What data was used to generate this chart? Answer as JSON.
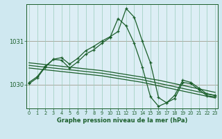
{
  "title": "Graphe pression niveau de la mer (hPa)",
  "background_color": "#cfe8f0",
  "plot_bg_color": "#ddeef5",
  "grid_color": "#99ccbb",
  "line_color": "#1a5e2a",
  "x_ticks": [
    0,
    1,
    2,
    3,
    4,
    5,
    6,
    7,
    8,
    9,
    10,
    11,
    12,
    13,
    14,
    15,
    16,
    17,
    18,
    19,
    20,
    21,
    22,
    23
  ],
  "y_ticks": [
    1030,
    1031
  ],
  "ylim": [
    1029.45,
    1031.85
  ],
  "xlim": [
    -0.3,
    23.3
  ],
  "series": {
    "line1": [
      1030.05,
      1030.18,
      1030.42,
      1030.58,
      1030.62,
      1030.47,
      1030.6,
      1030.78,
      1030.88,
      1031.0,
      1031.1,
      1031.22,
      1031.75,
      1031.55,
      1031.0,
      1030.5,
      1029.7,
      1029.58,
      1029.75,
      1030.1,
      1030.05,
      1029.92,
      1029.78,
      1029.75
    ],
    "line2": [
      1030.02,
      1030.15,
      1030.4,
      1030.58,
      1030.56,
      1030.38,
      1030.52,
      1030.7,
      1030.8,
      1030.95,
      1031.08,
      1031.52,
      1031.35,
      1030.95,
      1030.4,
      1029.72,
      1029.5,
      1029.58,
      1029.68,
      1030.05,
      1030.02,
      1029.88,
      1029.74,
      1029.72
    ],
    "line3_smooth": [
      1030.5,
      1030.48,
      1030.46,
      1030.44,
      1030.42,
      1030.4,
      1030.38,
      1030.36,
      1030.34,
      1030.32,
      1030.29,
      1030.26,
      1030.23,
      1030.2,
      1030.17,
      1030.13,
      1030.1,
      1030.06,
      1030.02,
      1029.98,
      1029.94,
      1029.9,
      1029.86,
      1029.82
    ],
    "line4_smooth": [
      1030.44,
      1030.42,
      1030.4,
      1030.38,
      1030.36,
      1030.34,
      1030.32,
      1030.3,
      1030.28,
      1030.26,
      1030.23,
      1030.2,
      1030.17,
      1030.14,
      1030.11,
      1030.07,
      1030.03,
      1029.99,
      1029.95,
      1029.91,
      1029.87,
      1029.83,
      1029.79,
      1029.75
    ],
    "line5_smooth": [
      1030.38,
      1030.36,
      1030.34,
      1030.32,
      1030.3,
      1030.28,
      1030.26,
      1030.24,
      1030.22,
      1030.2,
      1030.17,
      1030.14,
      1030.11,
      1030.08,
      1030.05,
      1030.01,
      1029.97,
      1029.93,
      1029.89,
      1029.85,
      1029.81,
      1029.77,
      1029.73,
      1029.69
    ]
  }
}
